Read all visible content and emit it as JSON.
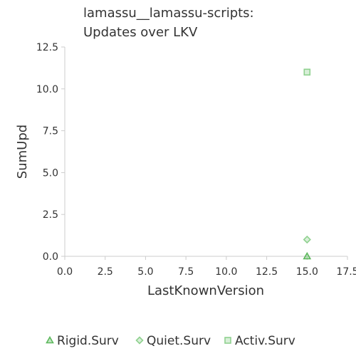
{
  "chart_data": {
    "type": "scatter",
    "title_lines": [
      "lamassu__lamassu-scripts:",
      "Updates over LKV"
    ],
    "xlabel": "LastKnownVersion",
    "ylabel": "SumUpd",
    "xlim": [
      0,
      17.5
    ],
    "ylim": [
      0,
      12.5
    ],
    "x_ticks": [
      "0.0",
      "2.5",
      "5.0",
      "7.5",
      "10.0",
      "12.5",
      "15.0",
      "17.5"
    ],
    "x_tick_values": [
      0,
      2.5,
      5,
      7.5,
      10,
      12.5,
      15,
      17.5
    ],
    "y_ticks": [
      "0.0",
      "2.5",
      "5.0",
      "7.5",
      "10.0",
      "12.5"
    ],
    "y_tick_values": [
      0,
      2.5,
      5,
      7.5,
      10,
      12.5
    ],
    "grid": false,
    "legend_position": "bottom",
    "series": [
      {
        "name": "Rigid.Surv",
        "marker": "triangle",
        "color": "#5cb85c",
        "points": [
          {
            "x": 15,
            "y": 0
          }
        ]
      },
      {
        "name": "Quiet.Surv",
        "marker": "diamond",
        "color": "#8fd18f",
        "points": [
          {
            "x": 15,
            "y": 1
          }
        ]
      },
      {
        "name": "Activ.Surv",
        "marker": "square",
        "color": "#8fd18f",
        "points": [
          {
            "x": 15,
            "y": 11
          }
        ]
      }
    ]
  }
}
